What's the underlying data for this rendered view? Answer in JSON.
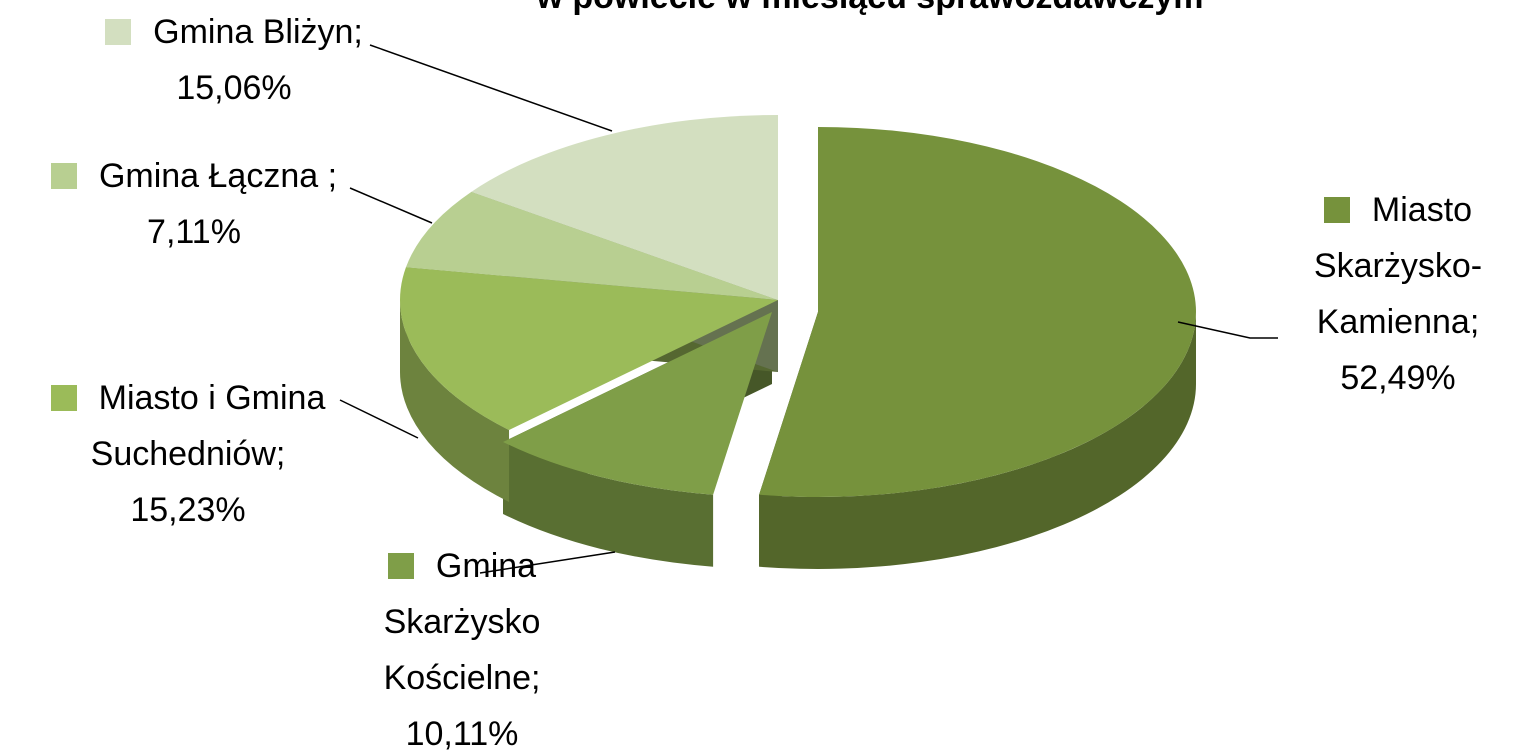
{
  "chart_data": {
    "type": "pie3d",
    "title": "w powiecie w miesiącu sprawozdawczym",
    "categories": [
      "Miasto Skarżysko-Kamienna;",
      "Gmina Skarżysko Kościelne;",
      "Miasto i Gmina Suchedniów;",
      "Gmina Łączna ;",
      "Gmina Bliżyn;"
    ],
    "values": [
      52.49,
      10.11,
      15.23,
      7.11,
      15.06
    ],
    "value_labels": [
      "52,49%",
      "10,11%",
      "15,23%",
      "7,11%",
      "15,06%"
    ],
    "colors": [
      "#76923c",
      "#7f9e48",
      "#9bbb59",
      "#b8cf91",
      "#d3dfc0"
    ]
  }
}
